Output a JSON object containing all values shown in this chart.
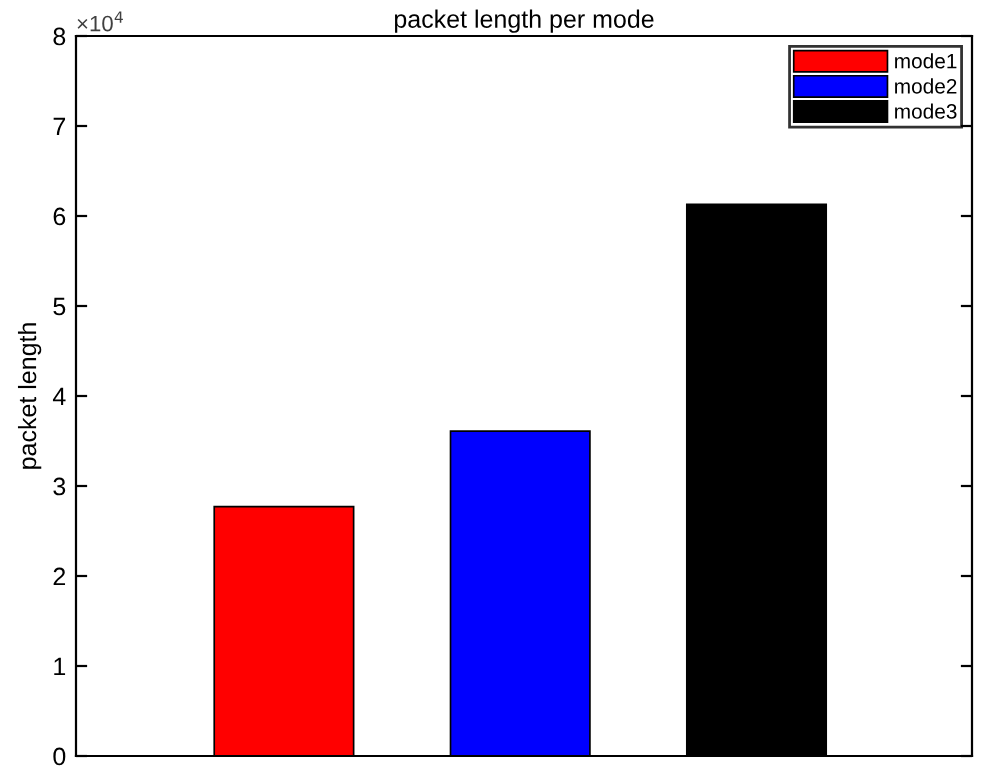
{
  "chart_data": {
    "type": "bar",
    "title": "packet length per mode",
    "ylabel": "packet length",
    "categories": [
      null,
      null,
      null
    ],
    "series": [
      {
        "name": "mode1",
        "color": "#ff0000",
        "values": [
          2.77,
          null,
          null
        ]
      },
      {
        "name": "mode2",
        "color": "#0000ff",
        "values": [
          null,
          3.61,
          null
        ]
      },
      {
        "name": "mode3",
        "color": "#000000",
        "values": [
          null,
          null,
          6.13
        ]
      }
    ],
    "ylim": [
      0,
      8
    ],
    "yticks": [
      0,
      1,
      2,
      3,
      4,
      5,
      6,
      7,
      8
    ],
    "annotations": [
      "×10$^{4}$"
    ],
    "legend": "top right",
    "grid": false
  }
}
